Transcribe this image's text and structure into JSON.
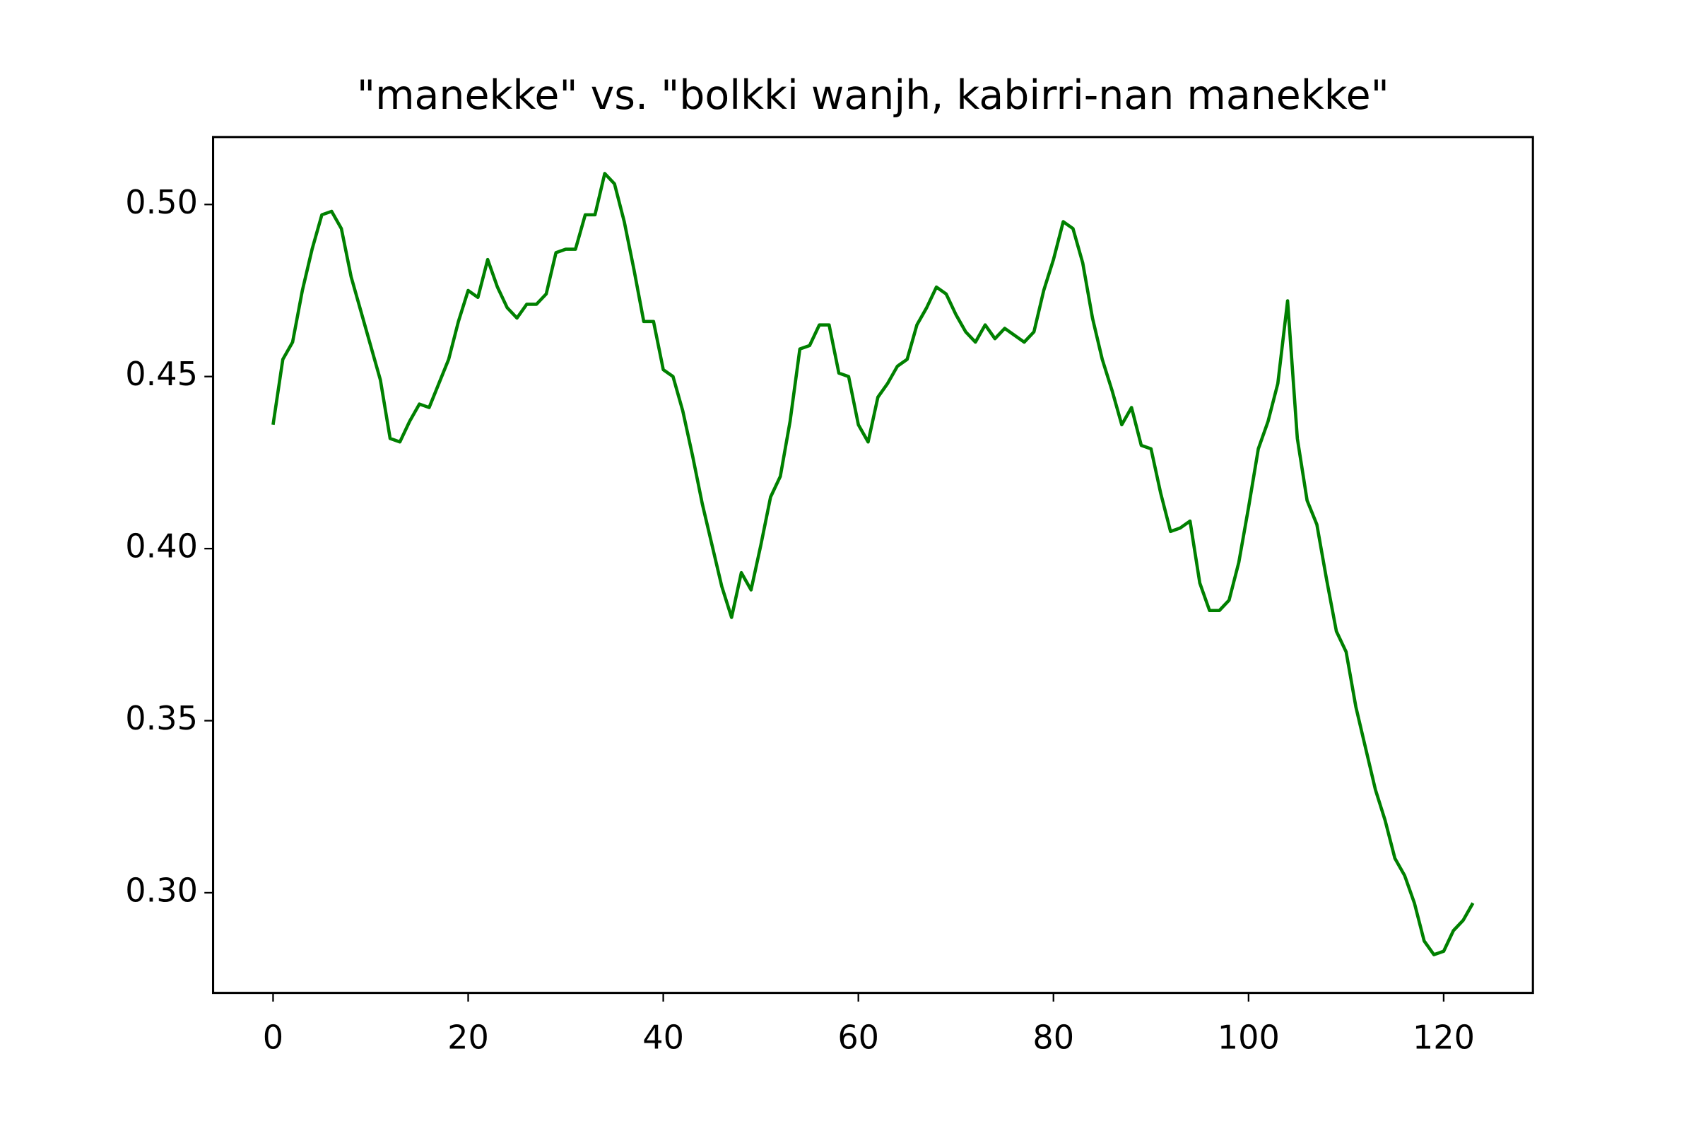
{
  "chart_data": {
    "type": "line",
    "title": "\"manekke\" vs. \"bolkki wanjh, kabirri-nan manekke\"",
    "x": [
      0,
      1,
      2,
      3,
      4,
      5,
      6,
      7,
      8,
      9,
      10,
      11,
      12,
      13,
      14,
      15,
      16,
      17,
      18,
      19,
      20,
      21,
      22,
      23,
      24,
      25,
      26,
      27,
      28,
      29,
      30,
      31,
      32,
      33,
      34,
      35,
      36,
      37,
      38,
      39,
      40,
      41,
      42,
      43,
      44,
      45,
      46,
      47,
      48,
      49,
      50,
      51,
      52,
      53,
      54,
      55,
      56,
      57,
      58,
      59,
      60,
      61,
      62,
      63,
      64,
      65,
      66,
      67,
      68,
      69,
      70,
      71,
      72,
      73,
      74,
      75,
      76,
      77,
      78,
      79,
      80,
      81,
      82,
      83,
      84,
      85,
      86,
      87,
      88,
      89,
      90,
      91,
      92,
      93,
      94,
      95,
      96,
      97,
      98,
      99,
      100,
      101,
      102,
      103,
      104,
      105,
      106,
      107,
      108,
      109,
      110,
      111,
      112,
      113,
      114,
      115,
      116,
      117,
      118,
      119,
      120,
      121,
      122,
      123
    ],
    "values": [
      0.436,
      0.455,
      0.46,
      0.475,
      0.487,
      0.497,
      0.498,
      0.493,
      0.479,
      0.469,
      0.459,
      0.449,
      0.432,
      0.431,
      0.437,
      0.442,
      0.441,
      0.448,
      0.455,
      0.466,
      0.475,
      0.473,
      0.484,
      0.476,
      0.47,
      0.467,
      0.471,
      0.471,
      0.474,
      0.486,
      0.487,
      0.487,
      0.497,
      0.497,
      0.509,
      0.506,
      0.495,
      0.481,
      0.466,
      0.466,
      0.452,
      0.45,
      0.44,
      0.427,
      0.413,
      0.401,
      0.389,
      0.38,
      0.393,
      0.388,
      0.401,
      0.415,
      0.421,
      0.437,
      0.458,
      0.459,
      0.465,
      0.465,
      0.451,
      0.45,
      0.436,
      0.431,
      0.444,
      0.448,
      0.453,
      0.455,
      0.465,
      0.47,
      0.476,
      0.474,
      0.468,
      0.463,
      0.46,
      0.465,
      0.461,
      0.464,
      0.462,
      0.46,
      0.463,
      0.475,
      0.484,
      0.495,
      0.493,
      0.483,
      0.467,
      0.455,
      0.446,
      0.436,
      0.441,
      0.43,
      0.429,
      0.416,
      0.405,
      0.406,
      0.408,
      0.39,
      0.382,
      0.382,
      0.385,
      0.396,
      0.412,
      0.429,
      0.437,
      0.448,
      0.472,
      0.432,
      0.414,
      0.407,
      0.391,
      0.376,
      0.37,
      0.354,
      0.342,
      0.33,
      0.321,
      0.31,
      0.305,
      0.297,
      0.286,
      0.282,
      0.283,
      0.289,
      0.292,
      0.297
    ],
    "color": "#008000",
    "xlim": [
      -6.15,
      129.15
    ],
    "ylim": [
      0.2709,
      0.5196
    ],
    "xticks": [
      0,
      20,
      40,
      60,
      80,
      100,
      120
    ],
    "yticks": [
      {
        "value": 0.3,
        "label": "0.30"
      },
      0.35,
      {
        "value": 0.4,
        "label": "0.40"
      },
      0.45,
      {
        "value": 0.5,
        "label": "0.50"
      }
    ],
    "grid": false
  }
}
